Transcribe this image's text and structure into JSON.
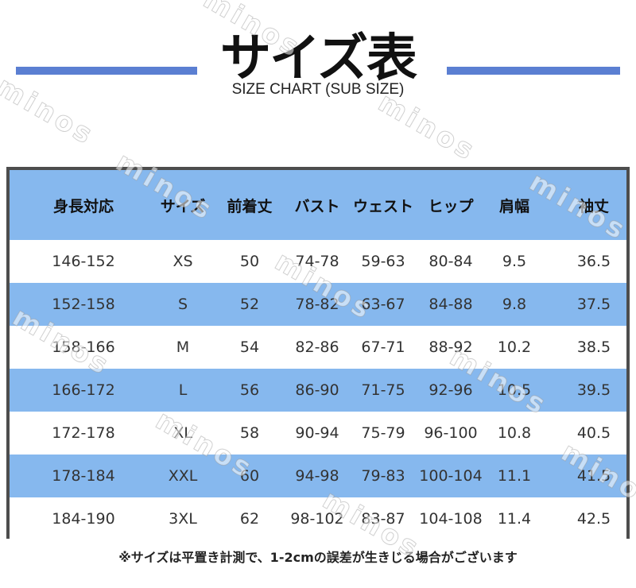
{
  "title": "サイズ表",
  "subtitle": "SIZE CHART (SUB SIZE)",
  "watermark_text": "minos",
  "colors": {
    "accent_bar": "#5b7fd2",
    "row_blue": "#86b8ee",
    "frame": "#4d4d4d"
  },
  "table": {
    "headers": [
      "身長対応",
      "サイズ",
      "前着丈",
      "バスト",
      "ウェスト",
      "ヒップ",
      "肩幅",
      "袖丈"
    ],
    "rows": [
      [
        "146-152",
        "XS",
        "50",
        "74-78",
        "59-63",
        "80-84",
        "9.5",
        "36.5"
      ],
      [
        "152-158",
        "S",
        "52",
        "78-82",
        "63-67",
        "84-88",
        "9.8",
        "37.5"
      ],
      [
        "158-166",
        "M",
        "54",
        "82-86",
        "67-71",
        "88-92",
        "10.2",
        "38.5"
      ],
      [
        "166-172",
        "L",
        "56",
        "86-90",
        "71-75",
        "92-96",
        "10.5",
        "39.5"
      ],
      [
        "172-178",
        "XL",
        "58",
        "90-94",
        "75-79",
        "96-100",
        "10.8",
        "40.5"
      ],
      [
        "178-184",
        "XXL",
        "60",
        "94-98",
        "79-83",
        "100-104",
        "11.1",
        "41.5"
      ],
      [
        "184-190",
        "3XL",
        "62",
        "98-102",
        "83-87",
        "104-108",
        "11.4",
        "42.5"
      ]
    ]
  },
  "note": "※サイズは平置き計測で、1-2cmの誤差が生きじる場合がございます"
}
